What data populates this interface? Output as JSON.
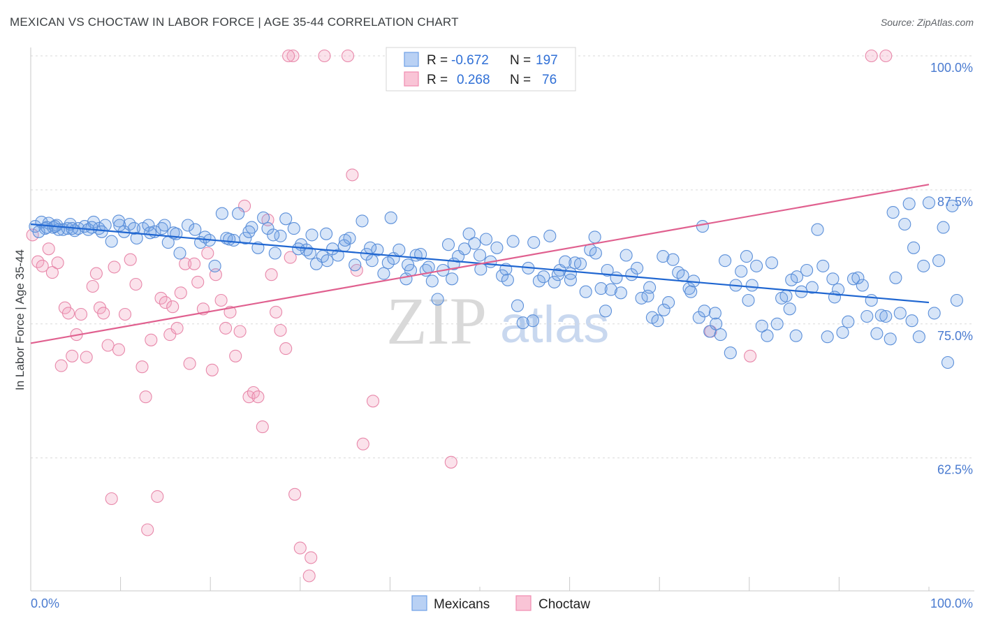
{
  "header": {
    "title": "MEXICAN VS CHOCTAW IN LABOR FORCE | AGE 35-44 CORRELATION CHART",
    "source": "Source: ZipAtlas.com"
  },
  "watermark": {
    "zip": "ZIP",
    "atlas": "atlas"
  },
  "legend": {
    "rows": [
      {
        "r_label": "R =",
        "r_value": "-0.672",
        "n_label": "N =",
        "n_value": "197",
        "color": "#6fa0e6"
      },
      {
        "r_label": "R =",
        "r_value": "0.268",
        "n_label": "N =",
        "n_value": "76",
        "color": "#f08db0"
      }
    ]
  },
  "bottom_legend": {
    "items": [
      {
        "label": "Mexicans"
      },
      {
        "label": "Choctaw"
      }
    ]
  },
  "chart_data": {
    "type": "scatter",
    "title": "MEXICAN VS CHOCTAW IN LABOR FORCE | AGE 35-44 CORRELATION CHART",
    "xlabel": "",
    "ylabel": "In Labor Force | Age 35-44",
    "xlim": [
      0,
      100
    ],
    "ylim": [
      52.0,
      101.5
    ],
    "x_tick_labels": [
      "0.0%",
      "100.0%"
    ],
    "y_ticks": [
      62.5,
      75.0,
      87.5,
      100.0
    ],
    "y_tick_labels": [
      "62.5%",
      "75.0%",
      "87.5%",
      "100.0%"
    ],
    "grid": true,
    "legend_position": "top-center",
    "series": [
      {
        "name": "Mexicans",
        "color": "#6fa0e6",
        "stroke": "#5b8fd9",
        "r": -0.672,
        "n": 197,
        "trend": {
          "x": [
            0,
            100
          ],
          "y": [
            84.3,
            77.0
          ]
        },
        "points": [
          [
            0.5,
            84.1
          ],
          [
            1.2,
            84.5
          ],
          [
            1.6,
            83.9
          ],
          [
            2.0,
            84.4
          ],
          [
            2.5,
            84.0
          ],
          [
            2.9,
            84.2
          ],
          [
            3.6,
            83.8
          ],
          [
            4.1,
            83.9
          ],
          [
            4.9,
            83.7
          ],
          [
            5.3,
            83.9
          ],
          [
            6.0,
            84.1
          ],
          [
            6.4,
            83.8
          ],
          [
            7.0,
            84.5
          ],
          [
            7.6,
            83.9
          ],
          [
            8.3,
            84.2
          ],
          [
            9.0,
            82.7
          ],
          [
            9.8,
            84.6
          ],
          [
            10.4,
            83.6
          ],
          [
            11.0,
            84.3
          ],
          [
            11.8,
            83.0
          ],
          [
            12.5,
            83.9
          ],
          [
            13.1,
            84.2
          ],
          [
            13.8,
            83.6
          ],
          [
            14.6,
            83.9
          ],
          [
            15.3,
            82.6
          ],
          [
            15.9,
            83.5
          ],
          [
            16.6,
            81.6
          ],
          [
            17.5,
            84.2
          ],
          [
            18.3,
            83.8
          ],
          [
            18.9,
            82.6
          ],
          [
            19.4,
            83.1
          ],
          [
            20.5,
            80.4
          ],
          [
            21.3,
            85.3
          ],
          [
            21.8,
            83.0
          ],
          [
            22.6,
            82.8
          ],
          [
            23.1,
            85.3
          ],
          [
            23.9,
            83.0
          ],
          [
            24.6,
            84.0
          ],
          [
            25.3,
            82.1
          ],
          [
            25.9,
            84.9
          ],
          [
            26.4,
            83.9
          ],
          [
            27.2,
            81.6
          ],
          [
            27.8,
            83.2
          ],
          [
            28.4,
            84.8
          ],
          [
            29.3,
            83.9
          ],
          [
            30.1,
            82.4
          ],
          [
            30.7,
            81.9
          ],
          [
            31.3,
            83.3
          ],
          [
            31.8,
            80.6
          ],
          [
            32.5,
            81.3
          ],
          [
            33.0,
            80.9
          ],
          [
            33.6,
            82.0
          ],
          [
            34.2,
            81.4
          ],
          [
            34.9,
            82.3
          ],
          [
            35.5,
            83.0
          ],
          [
            36.1,
            80.5
          ],
          [
            36.9,
            84.6
          ],
          [
            37.4,
            81.5
          ],
          [
            38.0,
            80.9
          ],
          [
            38.6,
            81.9
          ],
          [
            39.3,
            79.7
          ],
          [
            39.8,
            80.7
          ],
          [
            40.4,
            81.1
          ],
          [
            41.0,
            81.9
          ],
          [
            41.8,
            79.2
          ],
          [
            42.3,
            80.0
          ],
          [
            42.9,
            81.4
          ],
          [
            43.4,
            81.5
          ],
          [
            44.0,
            80.0
          ],
          [
            44.7,
            79.0
          ],
          [
            45.3,
            77.3
          ],
          [
            45.9,
            80.0
          ],
          [
            46.5,
            82.4
          ],
          [
            47.1,
            80.6
          ],
          [
            47.6,
            81.3
          ],
          [
            48.3,
            82.0
          ],
          [
            48.8,
            83.4
          ],
          [
            49.4,
            82.5
          ],
          [
            50.1,
            80.1
          ],
          [
            50.7,
            82.9
          ],
          [
            51.2,
            80.8
          ],
          [
            51.9,
            82.1
          ],
          [
            52.5,
            79.5
          ],
          [
            53.1,
            79.1
          ],
          [
            53.7,
            82.7
          ],
          [
            54.2,
            76.7
          ],
          [
            54.8,
            75.1
          ],
          [
            55.4,
            80.2
          ],
          [
            56.0,
            82.6
          ],
          [
            56.6,
            79.0
          ],
          [
            57.1,
            79.4
          ],
          [
            57.8,
            83.2
          ],
          [
            58.3,
            78.9
          ],
          [
            58.9,
            80.0
          ],
          [
            59.5,
            80.8
          ],
          [
            60.1,
            79.1
          ],
          [
            60.6,
            80.7
          ],
          [
            61.2,
            80.6
          ],
          [
            61.8,
            78.0
          ],
          [
            62.3,
            81.9
          ],
          [
            62.9,
            81.6
          ],
          [
            63.5,
            78.3
          ],
          [
            64.0,
            76.2
          ],
          [
            64.6,
            78.2
          ],
          [
            65.2,
            79.3
          ],
          [
            65.7,
            77.9
          ],
          [
            66.3,
            81.4
          ],
          [
            66.9,
            79.6
          ],
          [
            67.5,
            80.2
          ],
          [
            68.0,
            77.4
          ],
          [
            68.7,
            77.6
          ],
          [
            69.2,
            75.6
          ],
          [
            69.8,
            75.3
          ],
          [
            70.4,
            81.3
          ],
          [
            71.0,
            77.0
          ],
          [
            71.5,
            81.0
          ],
          [
            72.1,
            79.8
          ],
          [
            72.6,
            79.5
          ],
          [
            73.3,
            78.3
          ],
          [
            73.8,
            79.0
          ],
          [
            74.4,
            75.6
          ],
          [
            75.0,
            76.2
          ],
          [
            75.6,
            74.3
          ],
          [
            76.2,
            76.0
          ],
          [
            76.8,
            74.0
          ],
          [
            77.3,
            80.9
          ],
          [
            77.9,
            72.3
          ],
          [
            78.5,
            78.6
          ],
          [
            79.1,
            79.9
          ],
          [
            79.7,
            81.3
          ],
          [
            80.3,
            78.6
          ],
          [
            80.8,
            80.4
          ],
          [
            81.4,
            74.8
          ],
          [
            82.0,
            73.9
          ],
          [
            82.5,
            80.7
          ],
          [
            83.1,
            75.0
          ],
          [
            83.6,
            77.4
          ],
          [
            84.1,
            77.6
          ],
          [
            84.7,
            79.1
          ],
          [
            85.3,
            79.4
          ],
          [
            85.8,
            78.0
          ],
          [
            86.4,
            80.0
          ],
          [
            87.0,
            78.4
          ],
          [
            87.6,
            83.8
          ],
          [
            88.2,
            80.4
          ],
          [
            88.7,
            73.8
          ],
          [
            89.3,
            79.2
          ],
          [
            89.9,
            78.2
          ],
          [
            90.4,
            74.2
          ],
          [
            91.0,
            75.2
          ],
          [
            91.6,
            79.2
          ],
          [
            92.1,
            79.3
          ],
          [
            92.6,
            78.6
          ],
          [
            93.1,
            75.7
          ],
          [
            93.6,
            77.2
          ],
          [
            94.2,
            74.1
          ],
          [
            94.7,
            75.8
          ],
          [
            95.2,
            75.7
          ],
          [
            95.7,
            73.6
          ],
          [
            96.3,
            79.3
          ],
          [
            96.8,
            76.0
          ],
          [
            97.3,
            84.3
          ],
          [
            97.8,
            86.2
          ],
          [
            98.3,
            82.1
          ],
          [
            98.9,
            73.8
          ],
          [
            99.4,
            80.4
          ],
          [
            100.0,
            86.3
          ],
          [
            100.6,
            76.0
          ],
          [
            101.1,
            80.9
          ],
          [
            101.6,
            84.0
          ],
          [
            102.1,
            71.4
          ],
          [
            102.6,
            86.0
          ],
          [
            103.1,
            77.2
          ],
          [
            96.0,
            85.4
          ],
          [
            74.8,
            84.1
          ],
          [
            62.8,
            83.1
          ],
          [
            40.1,
            84.9
          ],
          [
            32.9,
            83.4
          ],
          [
            9.9,
            84.2
          ],
          [
            4.4,
            84.3
          ],
          [
            55.9,
            75.3
          ],
          [
            85.2,
            73.9
          ],
          [
            76.3,
            75.0
          ],
          [
            98.1,
            75.3
          ],
          [
            70.5,
            76.3
          ],
          [
            60.1,
            79.7
          ],
          [
            50.0,
            81.4
          ],
          [
            44.3,
            80.3
          ],
          [
            35.0,
            82.8
          ],
          [
            27.0,
            83.3
          ],
          [
            19.9,
            82.8
          ],
          [
            13.3,
            83.5
          ],
          [
            7.9,
            83.6
          ],
          [
            3.1,
            83.8
          ],
          [
            0.9,
            83.6
          ],
          [
            1.8,
            84.0
          ],
          [
            2.7,
            84.1
          ],
          [
            4.6,
            83.9
          ],
          [
            6.8,
            84.0
          ],
          [
            11.5,
            83.9
          ],
          [
            14.9,
            84.2
          ],
          [
            16.2,
            83.4
          ],
          [
            22.1,
            82.9
          ],
          [
            24.3,
            83.6
          ],
          [
            29.8,
            82.0
          ],
          [
            31.1,
            81.6
          ],
          [
            37.8,
            82.1
          ],
          [
            42.0,
            80.5
          ],
          [
            46.9,
            79.2
          ],
          [
            52.9,
            80.1
          ],
          [
            58.7,
            79.6
          ],
          [
            64.2,
            80.0
          ],
          [
            68.9,
            78.4
          ],
          [
            73.5,
            78.0
          ],
          [
            79.9,
            77.2
          ],
          [
            84.5,
            76.4
          ],
          [
            89.5,
            77.5
          ]
        ]
      },
      {
        "name": "Choctaw",
        "color": "#f4a5c0",
        "stroke": "#e888aa",
        "r": 0.268,
        "n": 76,
        "trend": {
          "x": [
            0,
            100
          ],
          "y": [
            73.2,
            88.0
          ]
        },
        "points": [
          [
            0.2,
            83.3
          ],
          [
            0.8,
            80.8
          ],
          [
            1.3,
            80.4
          ],
          [
            2.0,
            82.0
          ],
          [
            2.4,
            79.8
          ],
          [
            3.0,
            80.7
          ],
          [
            3.4,
            71.1
          ],
          [
            3.8,
            76.5
          ],
          [
            4.2,
            76.0
          ],
          [
            4.6,
            72.0
          ],
          [
            5.1,
            74.0
          ],
          [
            5.6,
            75.9
          ],
          [
            6.2,
            71.9
          ],
          [
            6.9,
            78.5
          ],
          [
            7.3,
            79.7
          ],
          [
            7.7,
            76.5
          ],
          [
            8.1,
            76.0
          ],
          [
            8.6,
            73.0
          ],
          [
            9.3,
            80.3
          ],
          [
            9.8,
            72.6
          ],
          [
            10.5,
            75.9
          ],
          [
            11.1,
            81.0
          ],
          [
            11.7,
            78.7
          ],
          [
            12.4,
            71.0
          ],
          [
            12.8,
            68.2
          ],
          [
            13.4,
            73.5
          ],
          [
            14.1,
            58.9
          ],
          [
            14.5,
            77.4
          ],
          [
            15.0,
            77.0
          ],
          [
            15.5,
            74.0
          ],
          [
            15.8,
            76.6
          ],
          [
            16.3,
            74.6
          ],
          [
            16.7,
            77.9
          ],
          [
            17.2,
            80.6
          ],
          [
            17.7,
            71.3
          ],
          [
            18.2,
            80.6
          ],
          [
            18.6,
            78.9
          ],
          [
            19.2,
            76.4
          ],
          [
            19.7,
            81.6
          ],
          [
            20.2,
            70.7
          ],
          [
            20.6,
            79.6
          ],
          [
            21.2,
            77.2
          ],
          [
            21.7,
            74.6
          ],
          [
            22.2,
            76.1
          ],
          [
            22.8,
            72.0
          ],
          [
            23.3,
            74.3
          ],
          [
            23.8,
            86.0
          ],
          [
            24.3,
            68.2
          ],
          [
            24.8,
            68.6
          ],
          [
            25.3,
            68.2
          ],
          [
            25.8,
            65.4
          ],
          [
            26.4,
            84.7
          ],
          [
            26.8,
            79.6
          ],
          [
            27.3,
            76.1
          ],
          [
            27.8,
            74.4
          ],
          [
            28.4,
            72.7
          ],
          [
            28.9,
            81.2
          ],
          [
            29.4,
            59.1
          ],
          [
            30.0,
            54.1
          ],
          [
            31.0,
            51.5
          ],
          [
            31.2,
            53.2
          ],
          [
            35.3,
            100.0
          ],
          [
            35.8,
            88.9
          ],
          [
            36.3,
            80.0
          ],
          [
            37.0,
            63.8
          ],
          [
            38.1,
            67.8
          ],
          [
            46.8,
            62.1
          ],
          [
            13.0,
            55.8
          ],
          [
            9.0,
            58.7
          ],
          [
            29.2,
            100.0
          ],
          [
            28.7,
            100.0
          ],
          [
            32.7,
            100.0
          ],
          [
            93.6,
            100.0
          ],
          [
            95.2,
            100.0
          ],
          [
            75.7,
            74.3
          ],
          [
            80.1,
            72.0
          ]
        ]
      }
    ]
  }
}
